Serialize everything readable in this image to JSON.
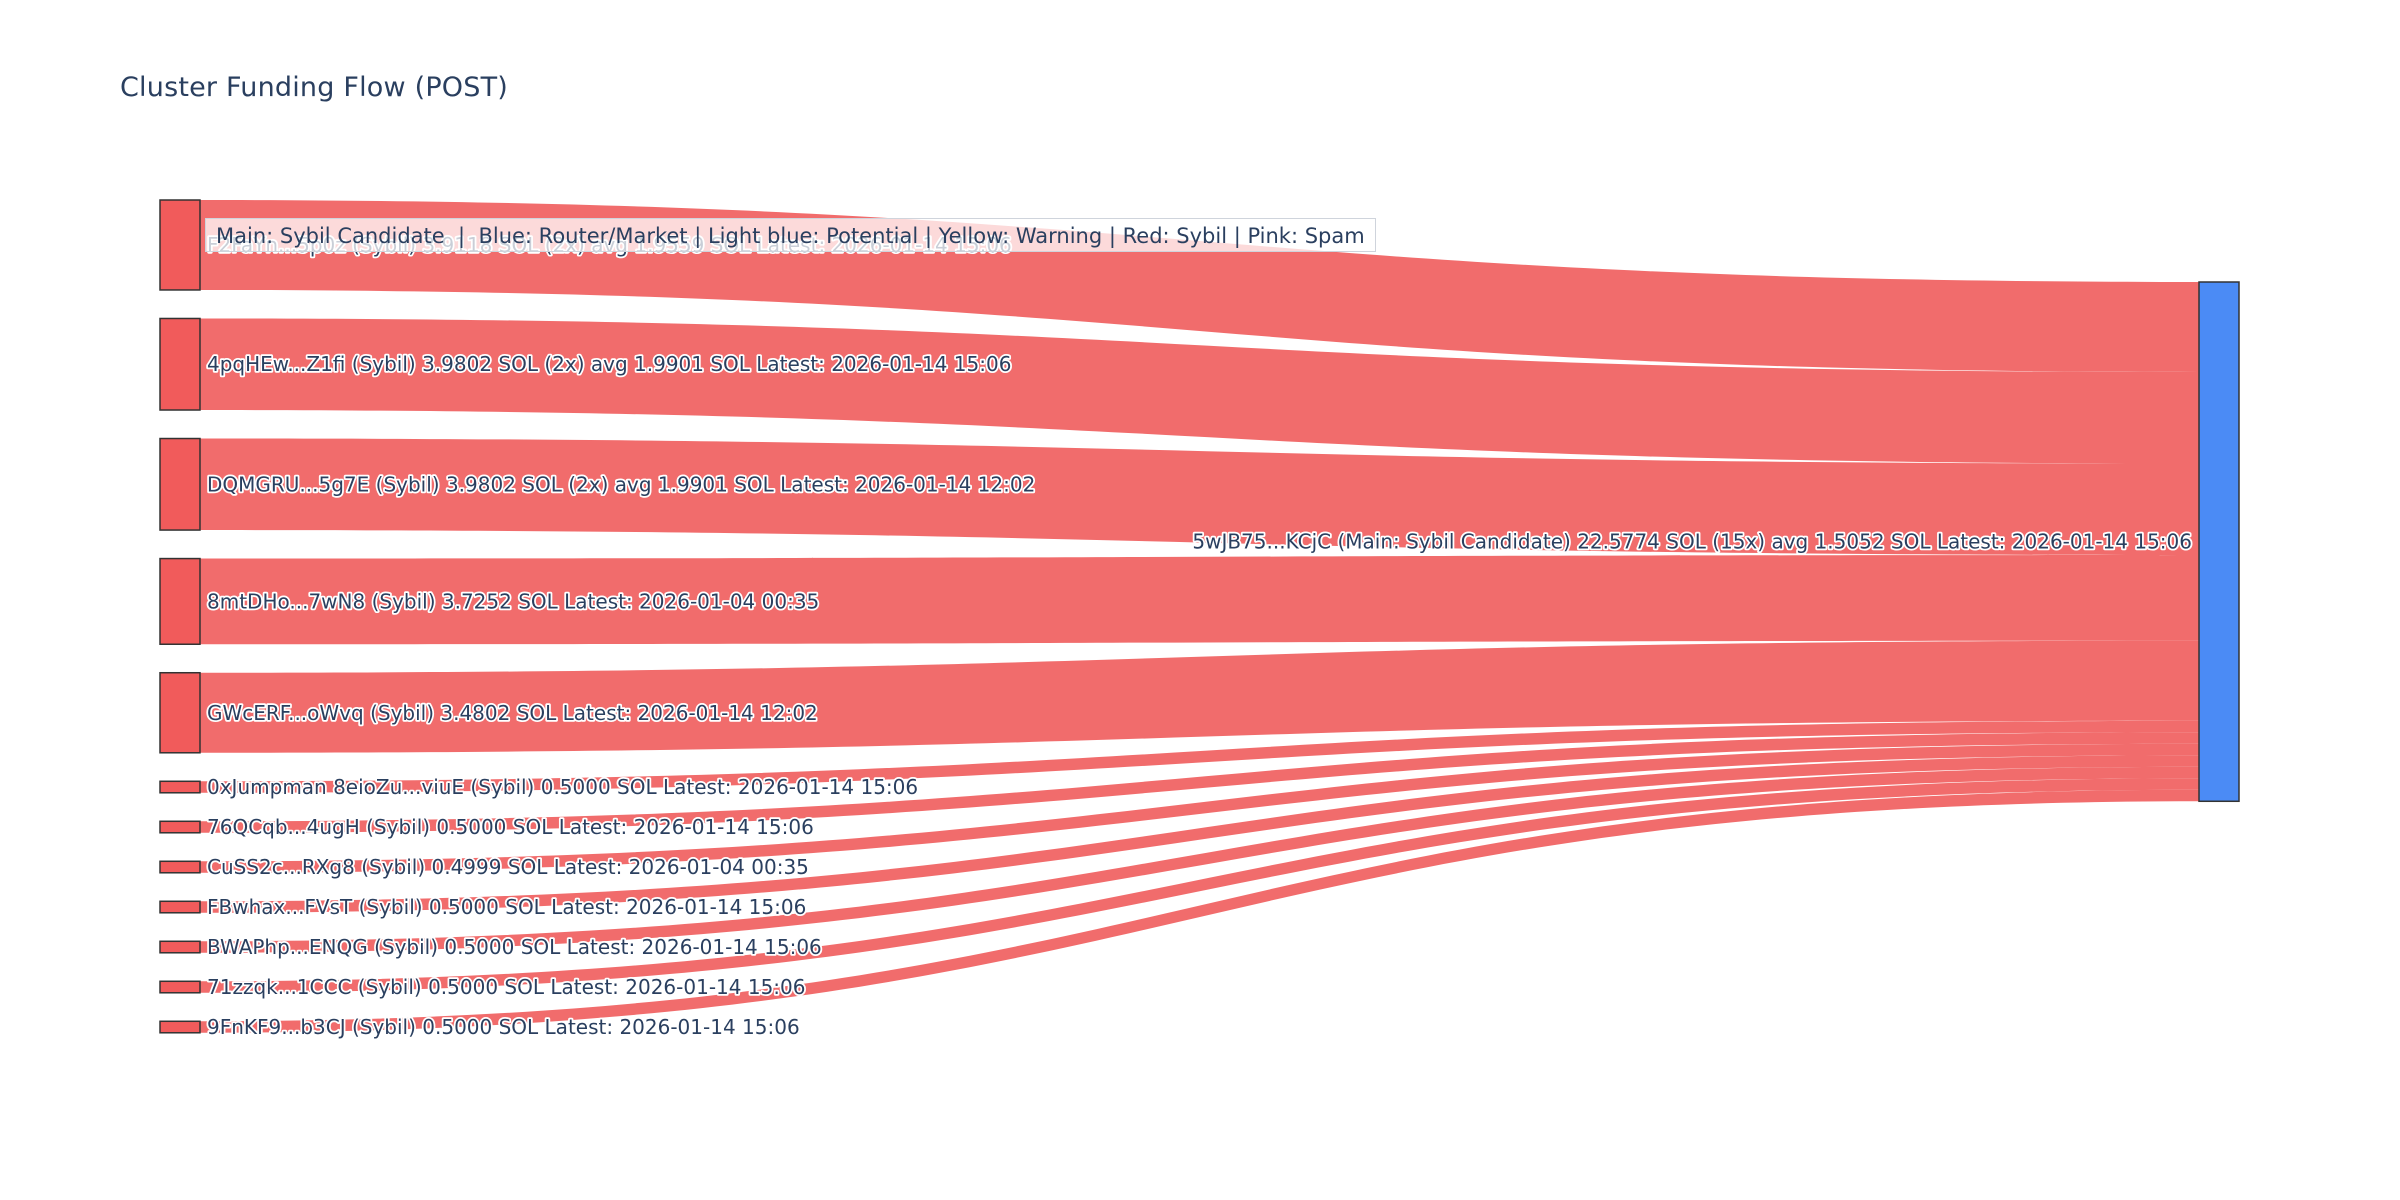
{
  "page": {
    "title": "Cluster Funding Flow (POST)",
    "legend_annotation": "Main: Sybil Candidate  |  Blue: Router/Market | Light blue: Potential | Yellow: Warning | Red: Sybil | Pink: Spam"
  },
  "chart_data": {
    "type": "sankey",
    "title": "Cluster Funding Flow (POST)",
    "unit": "SOL",
    "legend_annotation": "Main: Sybil Candidate  |  Blue: Router/Market | Light blue: Potential | Yellow: Warning | Red: Sybil | Pink: Spam",
    "sources": [
      {
        "label": "F2FaYn...5p0z (Sybil) 3.9118 SOL (2x) avg 1.9559 SOL Latest: 2026-01-14 15:06",
        "value": 3.9118
      },
      {
        "label": "4pqHEw...Z1fi (Sybil) 3.9802 SOL (2x) avg 1.9901 SOL Latest: 2026-01-14 15:06",
        "value": 3.9802
      },
      {
        "label": "DQMGRU...5g7E (Sybil) 3.9802 SOL (2x) avg 1.9901 SOL Latest: 2026-01-14 12:02",
        "value": 3.9802
      },
      {
        "label": "8mtDHo...7wN8 (Sybil) 3.7252 SOL Latest: 2026-01-04 00:35",
        "value": 3.7252
      },
      {
        "label": "GWcERF...oWvq (Sybil) 3.4802 SOL Latest: 2026-01-14 12:02",
        "value": 3.4802
      },
      {
        "label": "0xJumpman 8eioZu...viuE (Sybil) 0.5000 SOL Latest: 2026-01-14 15:06",
        "value": 0.5
      },
      {
        "label": "76QCqb...4ugH (Sybil) 0.5000 SOL Latest: 2026-01-14 15:06",
        "value": 0.5
      },
      {
        "label": "CuSS2c...RXg8 (Sybil) 0.4999 SOL Latest: 2026-01-04 00:35",
        "value": 0.4999
      },
      {
        "label": "FBwhax...FVsT (Sybil) 0.5000 SOL Latest: 2026-01-14 15:06",
        "value": 0.5
      },
      {
        "label": "BWAPhp...ENQG (Sybil) 0.5000 SOL Latest: 2026-01-14 15:06",
        "value": 0.5
      },
      {
        "label": "71zzqk...1CCC (Sybil) 0.5000 SOL Latest: 2026-01-14 15:06",
        "value": 0.5
      },
      {
        "label": "9FnKF9...b3CJ (Sybil) 0.5000 SOL Latest: 2026-01-14 15:06",
        "value": 0.5
      }
    ],
    "target": {
      "label": "5wJB75...KCjC (Main: Sybil Candidate) 22.5774 SOL (15x) avg 1.5052 SOL Latest: 2026-01-14 15:06",
      "value": 22.5774,
      "tx_count": "15x",
      "avg": "1.5052 SOL"
    },
    "colors": {
      "source_node": "#f15b5b",
      "target_node": "#4b8bf5",
      "link": "#f05c5c",
      "link_opacity": 0.9,
      "node_border": "#333333",
      "label": "#2a3f5f",
      "title": "#2a3f5f"
    },
    "layout_hints": {
      "orientation": "horizontal",
      "sources_left": true,
      "target_right": true
    }
  }
}
